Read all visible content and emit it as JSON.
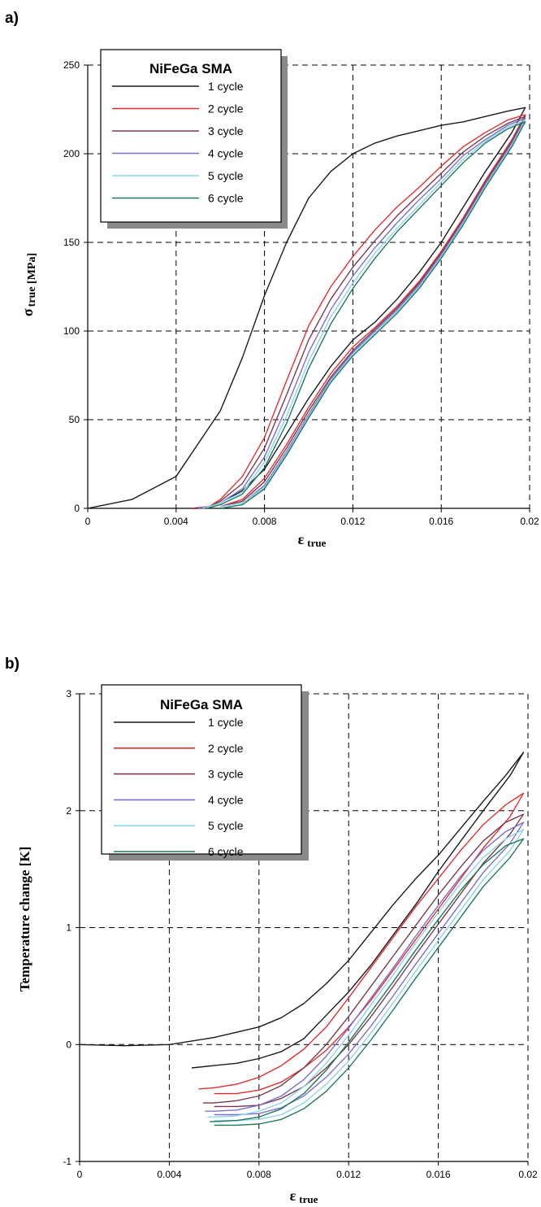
{
  "chart_data": [
    {
      "panel_label": "a)",
      "type": "line",
      "xlabel": "ε",
      "xlabel_sub": "true",
      "ylabel": "σ",
      "ylabel_sub": "true [MPa]",
      "xlim": [
        0,
        0.02
      ],
      "ylim": [
        0,
        250
      ],
      "xticks": [
        "0",
        "0.004",
        "0.008",
        "0.012",
        "0.016",
        "0.02"
      ],
      "yticks": [
        "0",
        "50",
        "100",
        "150",
        "200",
        "250"
      ],
      "grid": "dashed",
      "legend": {
        "title": "NiFeGa SMA",
        "placement": "top-left",
        "entries": [
          "1 cycle",
          "2 cycle",
          "3 cycle",
          "4 cycle",
          "5 cycle",
          "6 cycle"
        ]
      },
      "series": [
        {
          "name": "1 cycle",
          "color": "#1a1a1a",
          "x": [
            0,
            0.002,
            0.004,
            0.006,
            0.007,
            0.008,
            0.009,
            0.01,
            0.011,
            0.012,
            0.013,
            0.014,
            0.015,
            0.016,
            0.017,
            0.018,
            0.019,
            0.0198,
            0.0192,
            0.018,
            0.017,
            0.016,
            0.015,
            0.014,
            0.013,
            0.012,
            0.011,
            0.01,
            0.009,
            0.008,
            0.007,
            0.006,
            0.0055,
            0.005,
            0.0047
          ],
          "y": [
            0,
            5,
            18,
            55,
            85,
            120,
            150,
            175,
            190,
            200,
            206,
            210,
            213,
            216,
            218,
            221,
            224,
            226,
            212,
            190,
            170,
            150,
            133,
            118,
            105,
            95,
            80,
            62,
            42,
            22,
            10,
            3,
            1,
            0,
            0
          ]
        },
        {
          "name": "2 cycle",
          "color": "#e03030",
          "x": [
            0.0047,
            0.0055,
            0.006,
            0.007,
            0.008,
            0.009,
            0.01,
            0.011,
            0.012,
            0.013,
            0.014,
            0.015,
            0.016,
            0.017,
            0.018,
            0.019,
            0.0198,
            0.0192,
            0.018,
            0.017,
            0.016,
            0.015,
            0.014,
            0.013,
            0.012,
            0.011,
            0.01,
            0.009,
            0.008,
            0.007,
            0.006
          ],
          "y": [
            0,
            1,
            5,
            18,
            40,
            72,
            103,
            125,
            142,
            157,
            170,
            181,
            193,
            204,
            212,
            219,
            222,
            208,
            185,
            164,
            145,
            128,
            114,
            102,
            91,
            76,
            57,
            36,
            17,
            5,
            1
          ]
        },
        {
          "name": "3 cycle",
          "color": "#7a3a50",
          "x": [
            0.0048,
            0.0055,
            0.006,
            0.007,
            0.008,
            0.009,
            0.01,
            0.011,
            0.012,
            0.013,
            0.014,
            0.015,
            0.016,
            0.017,
            0.018,
            0.019,
            0.0198,
            0.0192,
            0.018,
            0.017,
            0.016,
            0.015,
            0.014,
            0.013,
            0.012,
            0.011,
            0.01,
            0.009,
            0.008,
            0.007,
            0.006
          ],
          "y": [
            0,
            1,
            4,
            14,
            34,
            64,
            95,
            118,
            136,
            151,
            165,
            177,
            189,
            201,
            210,
            217,
            221,
            207,
            184,
            163,
            144,
            127,
            113,
            101,
            89,
            74,
            55,
            34,
            15,
            4,
            1
          ]
        },
        {
          "name": "4 cycle",
          "color": "#7b6fd0",
          "x": [
            0.005,
            0.0055,
            0.006,
            0.007,
            0.008,
            0.009,
            0.01,
            0.011,
            0.012,
            0.013,
            0.014,
            0.015,
            0.016,
            0.017,
            0.018,
            0.019,
            0.0198,
            0.0192,
            0.018,
            0.017,
            0.016,
            0.015,
            0.014,
            0.013,
            0.012,
            0.011,
            0.01,
            0.009,
            0.008,
            0.007,
            0.006
          ],
          "y": [
            0,
            1,
            3,
            11,
            29,
            57,
            88,
            112,
            131,
            147,
            161,
            174,
            186,
            199,
            208,
            216,
            220,
            206,
            183,
            162,
            143,
            126,
            112,
            100,
            88,
            73,
            53,
            32,
            13,
            3,
            1
          ]
        },
        {
          "name": "5 cycle",
          "color": "#8fd4ec",
          "x": [
            0.0052,
            0.0055,
            0.006,
            0.007,
            0.008,
            0.009,
            0.01,
            0.011,
            0.012,
            0.013,
            0.014,
            0.015,
            0.016,
            0.017,
            0.018,
            0.019,
            0.0198,
            0.0192,
            0.018,
            0.017,
            0.016,
            0.015,
            0.014,
            0.013,
            0.012,
            0.011,
            0.01,
            0.009,
            0.008,
            0.007,
            0.006
          ],
          "y": [
            0,
            1,
            3,
            9,
            26,
            52,
            83,
            108,
            127,
            144,
            158,
            171,
            184,
            197,
            207,
            215,
            219,
            205,
            182,
            161,
            142,
            125,
            111,
            99,
            87,
            72,
            52,
            31,
            12,
            3,
            1
          ]
        },
        {
          "name": "6 cycle",
          "color": "#1e7a5a",
          "x": [
            0.0054,
            0.006,
            0.007,
            0.008,
            0.009,
            0.01,
            0.011,
            0.012,
            0.013,
            0.014,
            0.015,
            0.016,
            0.017,
            0.018,
            0.019,
            0.0198,
            0.0192,
            0.018,
            0.017,
            0.016,
            0.015,
            0.014,
            0.013,
            0.012,
            0.011,
            0.01,
            0.009,
            0.008,
            0.007,
            0.006
          ],
          "y": [
            0,
            2,
            8,
            23,
            48,
            79,
            104,
            124,
            141,
            156,
            169,
            182,
            195,
            206,
            214,
            218,
            204,
            181,
            160,
            141,
            124,
            110,
            98,
            86,
            71,
            51,
            30,
            11,
            2,
            0
          ]
        }
      ]
    },
    {
      "panel_label": "b)",
      "type": "line",
      "xlabel": "ε",
      "xlabel_sub": "true",
      "ylabel": "Temperature change [K]",
      "ylabel_sub": "",
      "xlim": [
        0,
        0.02
      ],
      "ylim": [
        -1,
        3
      ],
      "xticks": [
        "0",
        "0.004",
        "0.008",
        "0.012",
        "0.016",
        "0.02"
      ],
      "yticks": [
        "-1",
        "0",
        "1",
        "2",
        "3"
      ],
      "grid": "dashed",
      "legend": {
        "title": "NiFeGa SMA",
        "placement": "top-left",
        "entries": [
          "1 cycle",
          "2 cycle",
          "3 cycle",
          "4 cycle",
          "5 cycle",
          "6 cycle"
        ]
      },
      "series": [
        {
          "name": "1 cycle",
          "color": "#1a1a1a",
          "x": [
            0,
            0.002,
            0.004,
            0.006,
            0.008,
            0.009,
            0.01,
            0.011,
            0.012,
            0.013,
            0.014,
            0.015,
            0.016,
            0.017,
            0.018,
            0.019,
            0.0198,
            0.0192,
            0.018,
            0.017,
            0.016,
            0.015,
            0.014,
            0.013,
            0.012,
            0.011,
            0.01,
            0.009,
            0.008,
            0.007,
            0.006,
            0.005
          ],
          "y": [
            0,
            -0.01,
            0,
            0.06,
            0.15,
            0.23,
            0.35,
            0.52,
            0.72,
            0.96,
            1.2,
            1.42,
            1.62,
            1.85,
            2.08,
            2.3,
            2.5,
            2.3,
            2.0,
            1.74,
            1.48,
            1.2,
            0.94,
            0.68,
            0.45,
            0.25,
            0.05,
            -0.06,
            -0.12,
            -0.16,
            -0.18,
            -0.2
          ]
        },
        {
          "name": "2 cycle",
          "color": "#e03030",
          "x": [
            0.0053,
            0.006,
            0.007,
            0.008,
            0.009,
            0.01,
            0.011,
            0.012,
            0.013,
            0.014,
            0.015,
            0.016,
            0.017,
            0.018,
            0.019,
            0.0198,
            0.0192,
            0.018,
            0.017,
            0.016,
            0.015,
            0.014,
            0.013,
            0.012,
            0.011,
            0.01,
            0.009,
            0.008,
            0.007,
            0.006
          ],
          "y": [
            -0.38,
            -0.37,
            -0.34,
            -0.28,
            -0.18,
            -0.04,
            0.15,
            0.4,
            0.66,
            0.92,
            1.18,
            1.42,
            1.66,
            1.88,
            2.05,
            2.15,
            1.95,
            1.68,
            1.42,
            1.16,
            0.9,
            0.64,
            0.38,
            0.15,
            -0.05,
            -0.2,
            -0.32,
            -0.39,
            -0.42,
            -0.42
          ]
        },
        {
          "name": "3 cycle",
          "color": "#7a3a50",
          "x": [
            0.0055,
            0.006,
            0.007,
            0.008,
            0.009,
            0.01,
            0.011,
            0.012,
            0.013,
            0.014,
            0.015,
            0.016,
            0.017,
            0.018,
            0.019,
            0.0198,
            0.0192,
            0.018,
            0.017,
            0.016,
            0.015,
            0.014,
            0.013,
            0.012,
            0.011,
            0.01,
            0.009,
            0.008,
            0.007,
            0.006
          ],
          "y": [
            -0.5,
            -0.5,
            -0.48,
            -0.44,
            -0.35,
            -0.2,
            0.0,
            0.24,
            0.5,
            0.76,
            1.02,
            1.28,
            1.52,
            1.74,
            1.9,
            1.97,
            1.8,
            1.55,
            1.29,
            1.03,
            0.77,
            0.5,
            0.24,
            0.0,
            -0.2,
            -0.36,
            -0.46,
            -0.52,
            -0.53,
            -0.53
          ]
        },
        {
          "name": "4 cycle",
          "color": "#7b6fd0",
          "x": [
            0.0056,
            0.006,
            0.007,
            0.008,
            0.009,
            0.01,
            0.011,
            0.012,
            0.013,
            0.014,
            0.015,
            0.016,
            0.017,
            0.018,
            0.019,
            0.0198,
            0.0192,
            0.018,
            0.017,
            0.016,
            0.015,
            0.014,
            0.013,
            0.012,
            0.011,
            0.01,
            0.009,
            0.008,
            0.007,
            0.006
          ],
          "y": [
            -0.57,
            -0.57,
            -0.56,
            -0.52,
            -0.44,
            -0.3,
            -0.1,
            0.14,
            0.4,
            0.66,
            0.93,
            1.19,
            1.44,
            1.66,
            1.82,
            1.9,
            1.72,
            1.47,
            1.21,
            0.95,
            0.69,
            0.42,
            0.16,
            -0.08,
            -0.28,
            -0.44,
            -0.54,
            -0.59,
            -0.6,
            -0.6
          ]
        },
        {
          "name": "5 cycle",
          "color": "#8fd4ec",
          "x": [
            0.0057,
            0.006,
            0.007,
            0.008,
            0.009,
            0.01,
            0.011,
            0.012,
            0.013,
            0.014,
            0.015,
            0.016,
            0.017,
            0.018,
            0.019,
            0.0198,
            0.0192,
            0.018,
            0.017,
            0.016,
            0.015,
            0.014,
            0.013,
            0.012,
            0.011,
            0.01,
            0.009,
            0.008,
            0.007,
            0.006
          ],
          "y": [
            -0.62,
            -0.62,
            -0.61,
            -0.57,
            -0.5,
            -0.36,
            -0.16,
            0.08,
            0.34,
            0.6,
            0.87,
            1.13,
            1.38,
            1.6,
            1.76,
            1.84,
            1.66,
            1.41,
            1.15,
            0.89,
            0.63,
            0.36,
            0.1,
            -0.14,
            -0.34,
            -0.5,
            -0.6,
            -0.64,
            -0.65,
            -0.65
          ]
        },
        {
          "name": "6 cycle",
          "color": "#1e7a5a",
          "x": [
            0.0058,
            0.006,
            0.007,
            0.008,
            0.009,
            0.01,
            0.011,
            0.012,
            0.013,
            0.014,
            0.015,
            0.016,
            0.017,
            0.018,
            0.019,
            0.0198,
            0.0192,
            0.018,
            0.017,
            0.016,
            0.015,
            0.014,
            0.013,
            0.012,
            0.011,
            0.01,
            0.009,
            0.008,
            0.007,
            0.006
          ],
          "y": [
            -0.66,
            -0.66,
            -0.65,
            -0.62,
            -0.55,
            -0.42,
            -0.22,
            0.02,
            0.28,
            0.54,
            0.81,
            1.07,
            1.32,
            1.54,
            1.7,
            1.76,
            1.6,
            1.35,
            1.09,
            0.83,
            0.57,
            0.3,
            0.04,
            -0.2,
            -0.4,
            -0.55,
            -0.64,
            -0.68,
            -0.69,
            -0.69
          ]
        }
      ]
    }
  ]
}
